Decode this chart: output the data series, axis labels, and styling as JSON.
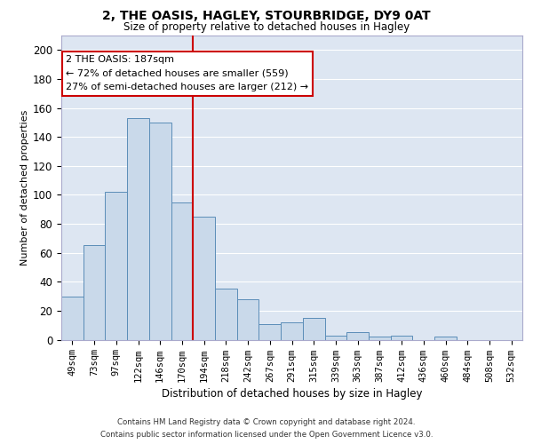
{
  "title1": "2, THE OASIS, HAGLEY, STOURBRIDGE, DY9 0AT",
  "title2": "Size of property relative to detached houses in Hagley",
  "xlabel": "Distribution of detached houses by size in Hagley",
  "ylabel": "Number of detached properties",
  "categories": [
    "49sqm",
    "73sqm",
    "97sqm",
    "122sqm",
    "146sqm",
    "170sqm",
    "194sqm",
    "218sqm",
    "242sqm",
    "267sqm",
    "291sqm",
    "315sqm",
    "339sqm",
    "363sqm",
    "387sqm",
    "412sqm",
    "436sqm",
    "460sqm",
    "484sqm",
    "508sqm",
    "532sqm"
  ],
  "bar_heights": [
    30,
    65,
    102,
    153,
    150,
    95,
    85,
    35,
    28,
    11,
    12,
    15,
    3,
    5,
    2,
    3,
    0,
    2,
    0,
    0,
    0
  ],
  "bar_color": "#c9d9ea",
  "bar_edge_color": "#5b8db8",
  "vline_x": 6.0,
  "vline_color": "#cc0000",
  "annotation_line1": "2 THE OASIS: 187sqm",
  "annotation_line2": "← 72% of detached houses are smaller (559)",
  "annotation_line3": "27% of semi-detached houses are larger (212) →",
  "ylim_max": 210,
  "yticks": [
    0,
    20,
    40,
    60,
    80,
    100,
    120,
    140,
    160,
    180,
    200
  ],
  "bg_color": "#dde6f2",
  "grid_color": "#ffffff",
  "footer_line1": "Contains HM Land Registry data © Crown copyright and database right 2024.",
  "footer_line2": "Contains public sector information licensed under the Open Government Licence v3.0."
}
